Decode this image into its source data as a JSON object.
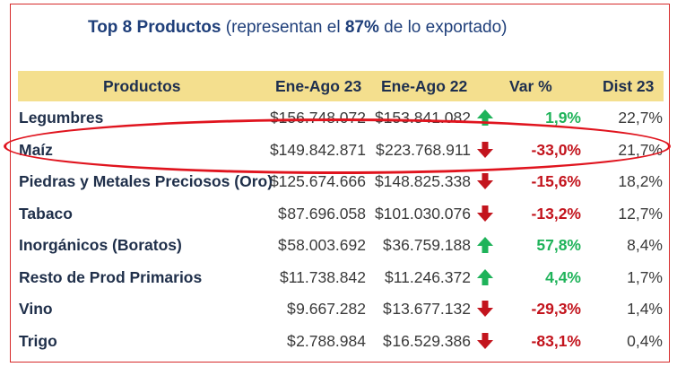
{
  "title": {
    "bold": "Top 8 Productos",
    "pre_pct": " (representan el ",
    "pct": "87%",
    "post_pct": " de lo exportado)"
  },
  "columns": {
    "productos": "Productos",
    "c1": "Ene-Ago 23",
    "c2": "Ene-Ago 22",
    "var": "Var %",
    "dist": "Dist 23"
  },
  "currency_symbol": "$",
  "colors": {
    "up": "#1fb35a",
    "down": "#c3141d",
    "header_bg": "#f4df8e",
    "highlight": "#e0141e"
  },
  "rows": [
    {
      "producto": "Legumbres",
      "ene_ago_23": "156.748.072",
      "ene_ago_22": "153.841.082",
      "trend": "up",
      "var": "1,9%",
      "dist": "22,7%"
    },
    {
      "producto": "Maíz",
      "ene_ago_23": "149.842.871",
      "ene_ago_22": "223.768.911",
      "trend": "down",
      "var": "-33,0%",
      "dist": "21,7%"
    },
    {
      "producto": "Piedras y Metales Preciosos (Oro)",
      "ene_ago_23": "125.674.666",
      "ene_ago_22": "148.825.338",
      "trend": "down",
      "var": "-15,6%",
      "dist": "18,2%"
    },
    {
      "producto": "Tabaco",
      "ene_ago_23": "87.696.058",
      "ene_ago_22": "101.030.076",
      "trend": "down",
      "var": "-13,2%",
      "dist": "12,7%"
    },
    {
      "producto": "Inorgánicos (Boratos)",
      "ene_ago_23": "58.003.692",
      "ene_ago_22": "36.759.188",
      "trend": "up",
      "var": "57,8%",
      "dist": "8,4%"
    },
    {
      "producto": "Resto de Prod Primarios",
      "ene_ago_23": "11.738.842",
      "ene_ago_22": "11.246.372",
      "trend": "up",
      "var": "4,4%",
      "dist": "1,7%"
    },
    {
      "producto": "Vino",
      "ene_ago_23": "9.667.282",
      "ene_ago_22": "13.677.132",
      "trend": "down",
      "var": "-29,3%",
      "dist": "1,4%"
    },
    {
      "producto": "Trigo",
      "ene_ago_23": "2.788.984",
      "ene_ago_22": "16.529.386",
      "trend": "down",
      "var": "-83,1%",
      "dist": "0,4%"
    }
  ]
}
